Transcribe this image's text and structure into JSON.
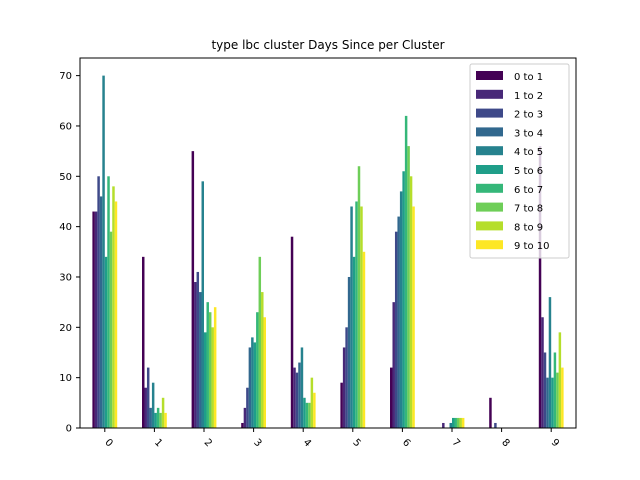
{
  "chart_data": {
    "type": "bar",
    "title": "type lbc cluster Days Since per Cluster",
    "xlabel": "",
    "ylabel": "",
    "categories": [
      "0",
      "1",
      "2",
      "3",
      "4",
      "5",
      "6",
      "7",
      "8",
      "9"
    ],
    "ylim": [
      0,
      73.5
    ],
    "yticks": [
      0,
      10,
      20,
      30,
      40,
      50,
      60,
      70
    ],
    "legend_position": "top-right",
    "series": [
      {
        "name": "0 to 1",
        "color": "#440154",
        "values": [
          43,
          34,
          55,
          1,
          38,
          9,
          12,
          0,
          6,
          56
        ]
      },
      {
        "name": "1 to 2",
        "color": "#482878",
        "values": [
          43,
          8,
          29,
          4,
          12,
          16,
          25,
          1,
          0,
          22
        ]
      },
      {
        "name": "2 to 3",
        "color": "#3e4989",
        "values": [
          50,
          12,
          31,
          8,
          11,
          20,
          39,
          0,
          1,
          15
        ]
      },
      {
        "name": "3 to 4",
        "color": "#31688e",
        "values": [
          46,
          4,
          27,
          16,
          13,
          30,
          42,
          0,
          0,
          10
        ]
      },
      {
        "name": "4 to 5",
        "color": "#26828e",
        "values": [
          70,
          9,
          49,
          18,
          16,
          44,
          47,
          1,
          0,
          26
        ]
      },
      {
        "name": "5 to 6",
        "color": "#1f9e89",
        "values": [
          34,
          3,
          19,
          17,
          6,
          34,
          51,
          2,
          0,
          10
        ]
      },
      {
        "name": "6 to 7",
        "color": "#35b779",
        "values": [
          50,
          4,
          25,
          23,
          5,
          45,
          62,
          2,
          0,
          15
        ]
      },
      {
        "name": "7 to 8",
        "color": "#6ece58",
        "values": [
          39,
          3,
          23,
          34,
          5,
          52,
          56,
          2,
          0,
          11
        ]
      },
      {
        "name": "8 to 9",
        "color": "#b5de2b",
        "values": [
          48,
          6,
          20,
          27,
          10,
          44,
          50,
          2,
          0,
          19
        ]
      },
      {
        "name": "9 to 10",
        "color": "#fde725",
        "values": [
          45,
          3,
          24,
          22,
          7,
          35,
          44,
          2,
          0,
          12
        ]
      }
    ]
  }
}
